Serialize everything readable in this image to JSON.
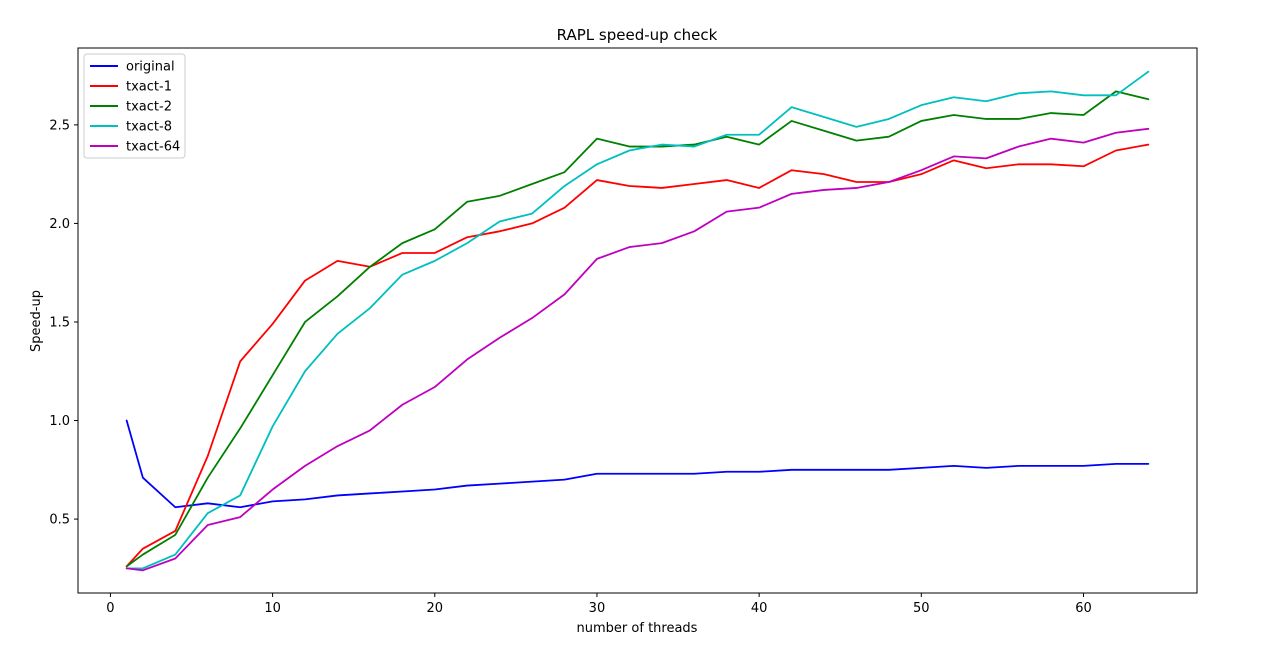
{
  "chart_data": {
    "type": "line",
    "title": "RAPL speed-up check",
    "xlabel": "number of threads",
    "ylabel": "Speed-up",
    "xlim": [
      -2,
      67
    ],
    "ylim": [
      0.125,
      2.89
    ],
    "xticks": [
      0,
      10,
      20,
      30,
      40,
      50,
      60
    ],
    "yticks": [
      0.5,
      1.0,
      1.5,
      2.0,
      2.5
    ],
    "ytick_labels": [
      "0.5",
      "1.0",
      "1.5",
      "2.0",
      "2.5"
    ],
    "grid": false,
    "legend_position": "top-left",
    "x": [
      1,
      2,
      4,
      6,
      8,
      10,
      12,
      14,
      16,
      18,
      20,
      22,
      24,
      26,
      28,
      30,
      32,
      34,
      36,
      38,
      40,
      42,
      44,
      46,
      48,
      50,
      52,
      54,
      56,
      58,
      60,
      62,
      64
    ],
    "series": [
      {
        "name": "original",
        "color": "#0000ff",
        "values": [
          1.0,
          0.71,
          0.56,
          0.58,
          0.56,
          0.59,
          0.6,
          0.62,
          0.63,
          0.64,
          0.65,
          0.67,
          0.68,
          0.69,
          0.7,
          0.73,
          0.73,
          0.73,
          0.73,
          0.74,
          0.74,
          0.75,
          0.75,
          0.75,
          0.75,
          0.76,
          0.77,
          0.76,
          0.77,
          0.77,
          0.77,
          0.78,
          0.78
        ]
      },
      {
        "name": "txact-1",
        "color": "#ff0000",
        "values": [
          0.26,
          0.35,
          0.44,
          0.82,
          1.3,
          1.49,
          1.71,
          1.81,
          1.78,
          1.85,
          1.85,
          1.93,
          1.96,
          2.0,
          2.08,
          2.22,
          2.19,
          2.18,
          2.2,
          2.22,
          2.18,
          2.27,
          2.25,
          2.21,
          2.21,
          2.25,
          2.32,
          2.28,
          2.3,
          2.3,
          2.29,
          2.37,
          2.4
        ]
      },
      {
        "name": "txact-2",
        "color": "#008000",
        "values": [
          0.26,
          0.32,
          0.42,
          0.71,
          0.96,
          1.23,
          1.5,
          1.63,
          1.78,
          1.9,
          1.97,
          2.11,
          2.14,
          2.2,
          2.26,
          2.43,
          2.39,
          2.39,
          2.4,
          2.44,
          2.4,
          2.52,
          2.47,
          2.42,
          2.44,
          2.52,
          2.55,
          2.53,
          2.53,
          2.56,
          2.55,
          2.67,
          2.63
        ]
      },
      {
        "name": "txact-8",
        "color": "#00bfbf",
        "values": [
          0.25,
          0.25,
          0.32,
          0.53,
          0.62,
          0.97,
          1.25,
          1.44,
          1.57,
          1.74,
          1.81,
          1.9,
          2.01,
          2.05,
          2.19,
          2.3,
          2.37,
          2.4,
          2.39,
          2.45,
          2.45,
          2.59,
          2.54,
          2.49,
          2.53,
          2.6,
          2.64,
          2.62,
          2.66,
          2.67,
          2.65,
          2.65,
          2.77
        ]
      },
      {
        "name": "txact-64",
        "color": "#bf00bf",
        "values": [
          0.25,
          0.24,
          0.3,
          0.47,
          0.51,
          0.65,
          0.77,
          0.87,
          0.95,
          1.08,
          1.17,
          1.31,
          1.42,
          1.52,
          1.64,
          1.82,
          1.88,
          1.9,
          1.96,
          2.06,
          2.08,
          2.15,
          2.17,
          2.18,
          2.21,
          2.27,
          2.34,
          2.33,
          2.39,
          2.43,
          2.41,
          2.46,
          2.48
        ]
      }
    ]
  }
}
